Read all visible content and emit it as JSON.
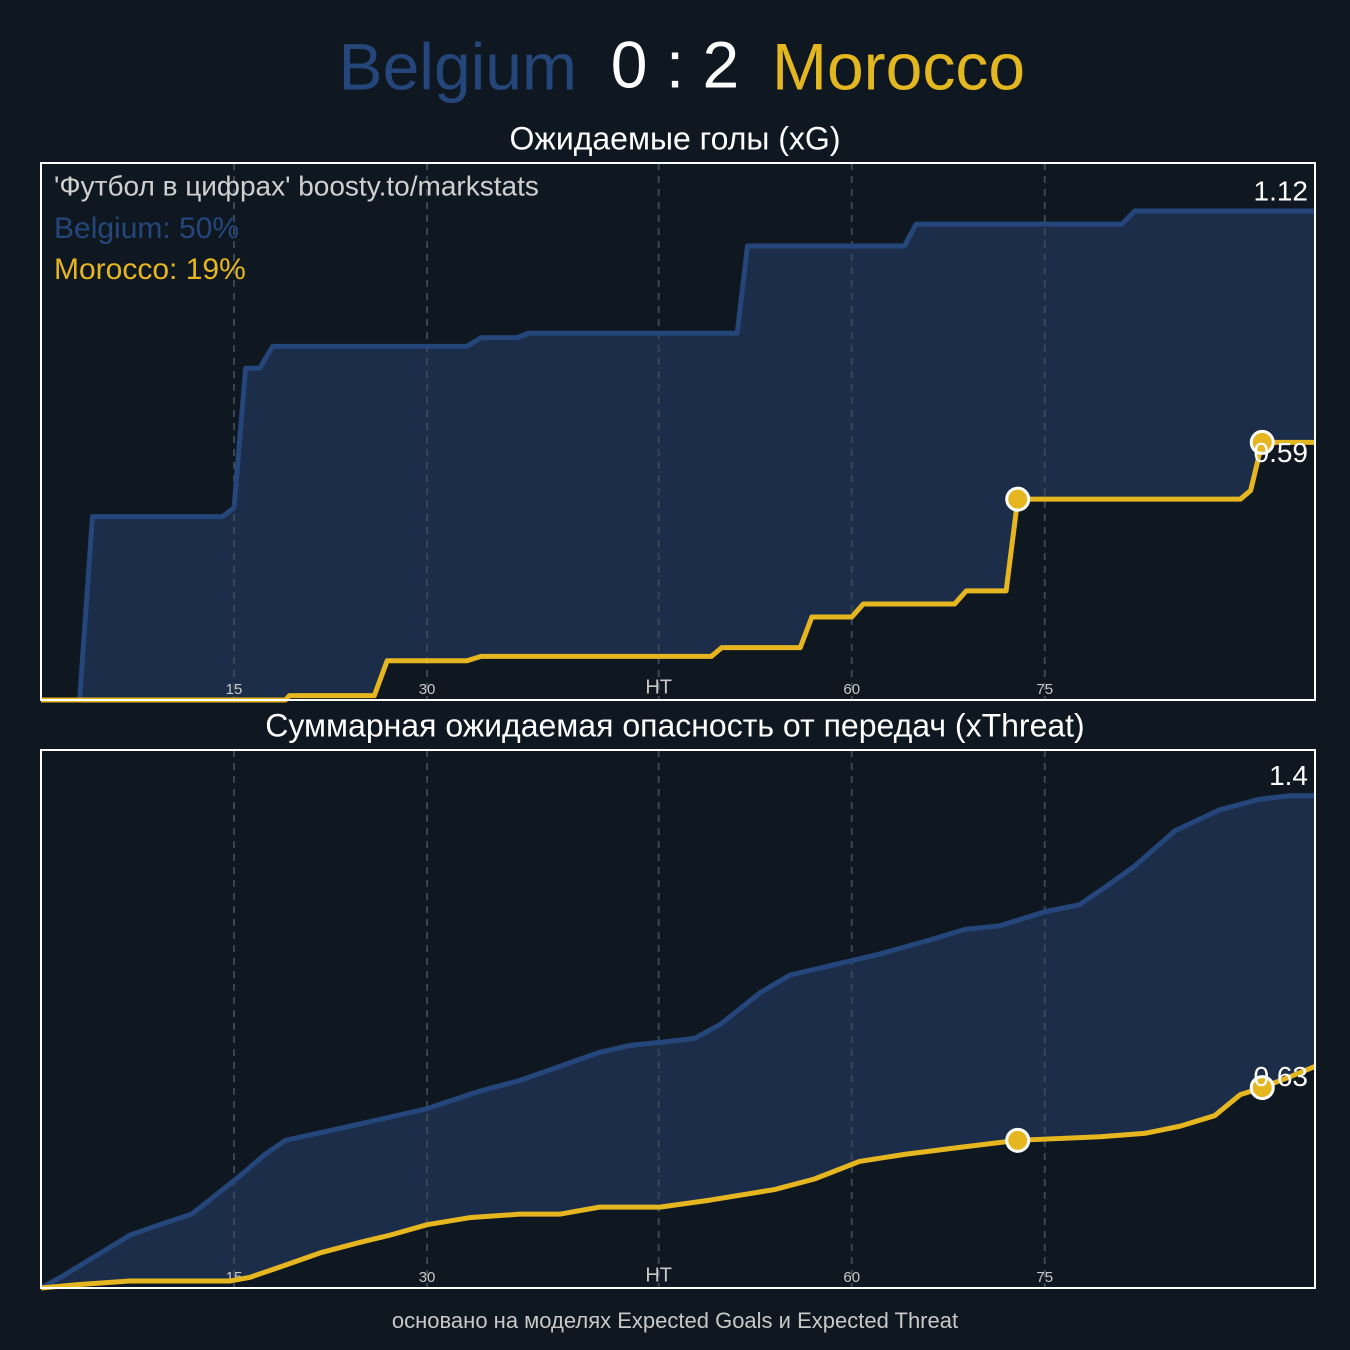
{
  "header": {
    "home": "Belgium",
    "score": "0 : 2",
    "away": "Morocco"
  },
  "footer": "основано на моделях Expected Goals и Expected Threat",
  "chart_data": [
    {
      "type": "line",
      "title": "Ожидаемые голы (xG)",
      "note": "'Футбол в цифрах' boosty.to/markstats",
      "xlim": [
        0,
        99
      ],
      "xticks": [
        15,
        30,
        {
          "value": 48,
          "label": "HT"
        },
        {
          "value": 63,
          "label": "60"
        },
        {
          "value": 78,
          "label": "75"
        }
      ],
      "ylim": [
        0,
        1.23
      ],
      "grid": true,
      "fill_between": "#1b2d48",
      "series": [
        {
          "label": "Belgium: 50%",
          "color": "#25467a",
          "x": [
            0,
            3.0,
            4.0,
            14.1,
            15.0,
            15.9,
            17.0,
            18.0,
            33.1,
            34.2,
            37.0,
            37.9,
            54.1,
            54.9,
            67.1,
            68.0,
            84.0,
            85.0,
            99
          ],
          "values": [
            0,
            0,
            0.42,
            0.42,
            0.44,
            0.76,
            0.76,
            0.81,
            0.81,
            0.83,
            0.83,
            0.84,
            0.84,
            1.04,
            1.04,
            1.09,
            1.09,
            1.12,
            1.12
          ],
          "goals": []
        },
        {
          "label": "Morocco: 19%",
          "color": "#e5b61f",
          "x": [
            0,
            19.0,
            19.3,
            25.9,
            26.9,
            33.1,
            34.2,
            52.1,
            52.9,
            59.0,
            59.9,
            63.0,
            63.9,
            71.0,
            71.9,
            75.0,
            75.9,
            93.2,
            94.0,
            94.9,
            99
          ],
          "values": [
            0,
            0,
            0.01,
            0.01,
            0.09,
            0.09,
            0.1,
            0.1,
            0.12,
            0.12,
            0.19,
            0.19,
            0.22,
            0.22,
            0.25,
            0.25,
            0.46,
            0.46,
            0.48,
            0.59,
            0.59
          ],
          "goals": [
            {
              "x": 75.9,
              "value": 0.46
            },
            {
              "x": 94.9,
              "value": 0.59
            }
          ]
        }
      ]
    },
    {
      "type": "line",
      "title": "Суммарная ожидаемая опасность от передач (xThreat)",
      "xlim": [
        0,
        99
      ],
      "xticks": [
        15,
        30,
        {
          "value": 48,
          "label": "HT"
        },
        {
          "value": 63,
          "label": "60"
        },
        {
          "value": 78,
          "label": "75"
        }
      ],
      "ylim": [
        0,
        1.53
      ],
      "grid": true,
      "fill_between": "#1b2d48",
      "series": [
        {
          "color": "#25467a",
          "x": [
            0,
            1.5,
            4.2,
            6.9,
            9.2,
            11.7,
            13.1,
            15.5,
            17.4,
            19.0,
            24.0,
            30.0,
            34.1,
            37.2,
            40.3,
            43.4,
            45.8,
            48.5,
            50.8,
            52.8,
            55.9,
            58.2,
            62.9,
            65.2,
            69.1,
            71.8,
            74.5,
            78.0,
            80.7,
            82.7,
            85.0,
            88.1,
            91.6,
            94.7,
            97.0,
            99
          ],
          "values": [
            0,
            0.03,
            0.09,
            0.15,
            0.18,
            0.21,
            0.25,
            0.32,
            0.38,
            0.42,
            0.46,
            0.51,
            0.56,
            0.59,
            0.63,
            0.67,
            0.69,
            0.7,
            0.71,
            0.75,
            0.84,
            0.89,
            0.93,
            0.95,
            0.99,
            1.02,
            1.03,
            1.07,
            1.09,
            1.14,
            1.2,
            1.3,
            1.36,
            1.39,
            1.4,
            1.4
          ],
          "goals": []
        },
        {
          "color": "#e5b61f",
          "x": [
            0,
            3.0,
            6.9,
            14.7,
            16.2,
            18.6,
            21.7,
            24.8,
            27.1,
            30.0,
            33.3,
            37.2,
            40.3,
            43.4,
            48.1,
            52.0,
            57.0,
            60.1,
            63.6,
            67.1,
            71.4,
            75.9,
            82.3,
            85.8,
            88.5,
            91.2,
            93.2,
            94.9,
            97.0,
            99
          ],
          "values": [
            0,
            0.01,
            0.02,
            0.02,
            0.03,
            0.06,
            0.1,
            0.13,
            0.15,
            0.18,
            0.2,
            0.21,
            0.21,
            0.23,
            0.23,
            0.25,
            0.28,
            0.31,
            0.36,
            0.38,
            0.4,
            0.42,
            0.43,
            0.44,
            0.46,
            0.49,
            0.55,
            0.57,
            0.6,
            0.63
          ],
          "goals": [
            {
              "x": 75.9,
              "value": 0.42
            },
            {
              "x": 94.9,
              "value": 0.57
            }
          ]
        }
      ]
    }
  ]
}
